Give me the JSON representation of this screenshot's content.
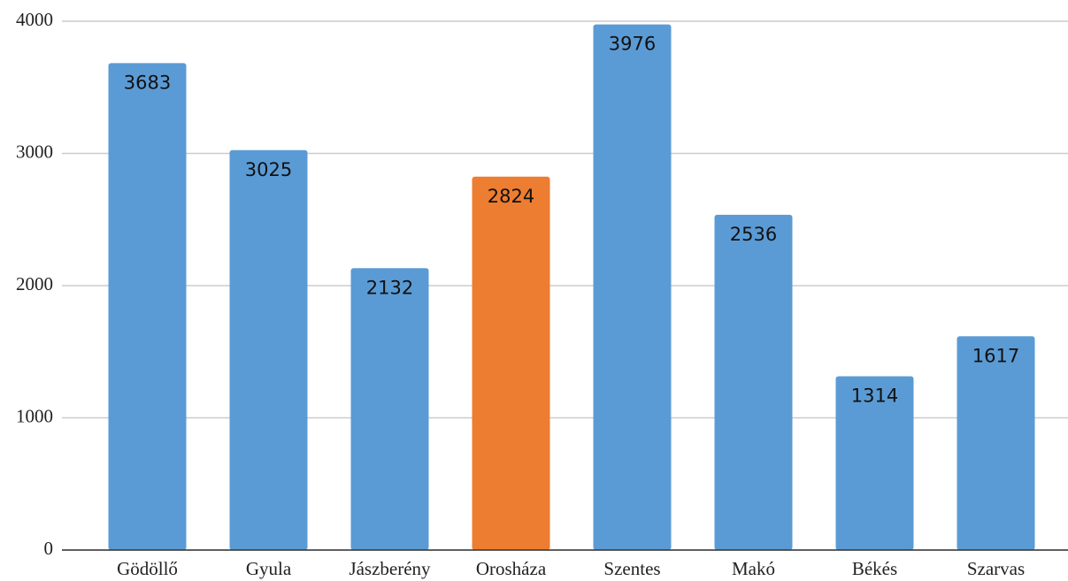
{
  "chart_data": {
    "type": "bar",
    "categories": [
      "Gödöllő",
      "Gyula",
      "Jászberény",
      "Orosháza",
      "Szentes",
      "Makó",
      "Békés",
      "Szarvas"
    ],
    "values": [
      3683,
      3025,
      2132,
      2824,
      3976,
      2536,
      1314,
      1617
    ],
    "colors": [
      "#5b9bd5",
      "#5b9bd5",
      "#5b9bd5",
      "#ed7d31",
      "#5b9bd5",
      "#5b9bd5",
      "#5b9bd5",
      "#5b9bd5"
    ],
    "ylim": [
      0,
      4000
    ],
    "yticks": [
      0,
      1000,
      2000,
      3000,
      4000
    ],
    "grid": true
  }
}
